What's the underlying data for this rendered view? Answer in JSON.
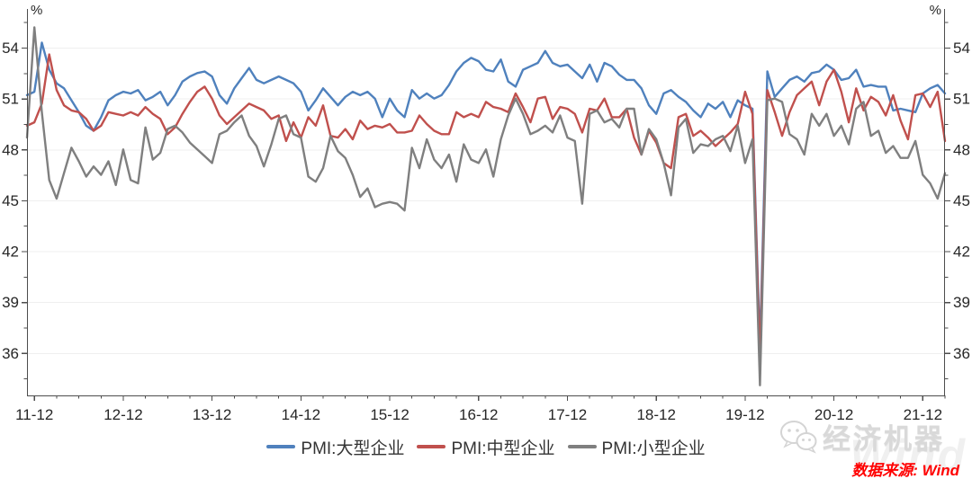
{
  "chart_data": {
    "type": "line",
    "title": "",
    "y_unit": "%",
    "frequency": "monthly",
    "x_monthly_range": [
      "2011-11",
      "2022-03"
    ],
    "ylim": [
      33.5,
      55.75
    ],
    "y_major_ticks": [
      36,
      39,
      42,
      45,
      48,
      51,
      54
    ],
    "y_minor_ticks": [
      34.5,
      37.5,
      40.5,
      43.5,
      46.5,
      49.5,
      52.5,
      55.5
    ],
    "x_tick_labels": [
      "11-12",
      "12-12",
      "13-12",
      "14-12",
      "15-12",
      "16-12",
      "17-12",
      "18-12",
      "19-12",
      "20-12",
      "21-12"
    ],
    "x_tick_every_months": 12,
    "x_first_tick_index": 1,
    "x_minor_tick_every_months": 3,
    "grid": "horizontal-only",
    "legend_position": "bottom-center",
    "axis_color": "#4d4d4d",
    "grid_color": "#efefef",
    "tick_label_color": "#262626",
    "series": [
      {
        "name": "PMI:大型企业",
        "color": "#4F81BD",
        "values": [
          51.2,
          51.4,
          54.3,
          52.7,
          51.9,
          51.6,
          50.9,
          50.2,
          49.4,
          49.1,
          49.9,
          50.9,
          51.2,
          51.4,
          51.3,
          51.5,
          50.9,
          51.1,
          51.4,
          50.6,
          51.2,
          52.0,
          52.3,
          52.5,
          52.6,
          52.3,
          51.2,
          50.7,
          51.6,
          52.2,
          52.8,
          52.1,
          51.9,
          52.1,
          52.3,
          52.1,
          51.9,
          51.4,
          50.3,
          50.9,
          51.6,
          51.1,
          50.6,
          51.1,
          51.4,
          51.2,
          51.4,
          51.0,
          49.9,
          51.0,
          50.3,
          49.9,
          51.5,
          51.0,
          51.3,
          51.0,
          51.2,
          51.8,
          52.6,
          53.1,
          53.4,
          53.2,
          52.7,
          52.6,
          53.3,
          52.0,
          51.7,
          52.7,
          52.9,
          53.1,
          53.8,
          53.1,
          52.9,
          53.0,
          52.6,
          52.2,
          53.0,
          52.0,
          53.1,
          52.9,
          52.4,
          52.1,
          52.1,
          51.6,
          50.6,
          50.1,
          51.3,
          51.5,
          51.1,
          50.8,
          50.3,
          49.9,
          50.7,
          50.4,
          50.8,
          49.9,
          50.9,
          50.6,
          50.4,
          36.3,
          52.6,
          51.1,
          51.6,
          52.1,
          52.3,
          52.0,
          52.5,
          52.6,
          53.0,
          52.7,
          52.1,
          52.2,
          52.7,
          51.7,
          51.8,
          51.7,
          51.7,
          50.3,
          50.4,
          50.3,
          50.2,
          51.3,
          51.6,
          51.8,
          51.3
        ]
      },
      {
        "name": "PMI:中型企业",
        "color": "#C0504D",
        "values": [
          49.4,
          49.6,
          50.7,
          53.6,
          51.5,
          50.6,
          50.3,
          50.2,
          49.8,
          49.1,
          49.4,
          50.2,
          50.1,
          50.0,
          50.2,
          50.0,
          50.5,
          50.1,
          49.8,
          48.9,
          49.3,
          50.1,
          50.8,
          51.4,
          51.7,
          51.0,
          50.0,
          49.5,
          49.9,
          50.3,
          50.7,
          50.5,
          50.3,
          49.8,
          50.0,
          48.5,
          49.6,
          48.7,
          49.9,
          49.4,
          50.6,
          48.8,
          48.7,
          49.2,
          48.6,
          49.7,
          49.2,
          49.4,
          49.3,
          49.5,
          49.0,
          49.0,
          49.1,
          50.0,
          49.5,
          49.1,
          48.9,
          48.9,
          50.2,
          49.9,
          50.1,
          49.9,
          50.8,
          50.5,
          50.4,
          50.2,
          51.3,
          50.5,
          49.6,
          51.0,
          51.1,
          49.8,
          50.5,
          50.4,
          50.1,
          49.0,
          50.4,
          50.3,
          51.0,
          49.9,
          49.9,
          50.4,
          48.7,
          47.7,
          49.1,
          48.4,
          47.2,
          46.9,
          49.9,
          50.1,
          48.8,
          49.1,
          48.7,
          48.2,
          48.6,
          49.0,
          49.5,
          51.4,
          50.1,
          35.5,
          51.5,
          50.2,
          48.8,
          50.2,
          51.2,
          51.6,
          52.0,
          50.6,
          52.0,
          52.7,
          51.4,
          49.6,
          51.6,
          50.3,
          51.1,
          50.8,
          50.0,
          51.2,
          49.7,
          48.6,
          51.2,
          51.3,
          50.5,
          51.4,
          48.5
        ]
      },
      {
        "name": "PMI:小型企业",
        "color": "#7F7F7F",
        "values": [
          48.7,
          55.2,
          50.2,
          46.2,
          45.1,
          46.6,
          48.1,
          47.3,
          46.4,
          47.0,
          46.5,
          47.3,
          45.9,
          48.0,
          46.2,
          46.0,
          49.3,
          47.4,
          47.8,
          49.2,
          49.4,
          49.0,
          48.4,
          48.0,
          47.6,
          47.2,
          48.9,
          49.1,
          49.6,
          50.0,
          48.8,
          48.2,
          47.0,
          48.3,
          49.8,
          50.0,
          48.9,
          48.7,
          46.4,
          46.1,
          46.9,
          48.8,
          47.9,
          47.5,
          46.5,
          45.2,
          45.7,
          44.6,
          44.8,
          44.9,
          44.8,
          44.4,
          48.1,
          46.9,
          48.6,
          47.4,
          46.9,
          47.7,
          46.1,
          48.3,
          47.4,
          47.2,
          48.0,
          46.4,
          48.6,
          50.0,
          51.0,
          50.1,
          48.9,
          49.1,
          49.4,
          49.0,
          50.0,
          48.7,
          48.5,
          44.8,
          50.1,
          50.3,
          49.6,
          49.8,
          49.3,
          50.4,
          50.4,
          47.7,
          49.2,
          48.6,
          47.2,
          45.3,
          49.3,
          49.8,
          47.8,
          48.3,
          48.2,
          48.6,
          48.8,
          47.9,
          49.4,
          47.2,
          48.6,
          34.1,
          50.9,
          51.0,
          50.8,
          48.9,
          48.6,
          47.7,
          50.1,
          49.4,
          50.1,
          48.8,
          49.4,
          48.3,
          50.4,
          50.8,
          48.8,
          49.1,
          47.8,
          48.2,
          47.5,
          47.5,
          48.5,
          46.5,
          46.0,
          45.1,
          46.6
        ]
      }
    ]
  },
  "legend": {
    "items": [
      {
        "label": "PMI:大型企业",
        "color": "#4F81BD"
      },
      {
        "label": "PMI:中型企业",
        "color": "#C0504D"
      },
      {
        "label": "PMI:小型企业",
        "color": "#7F7F7F"
      }
    ]
  },
  "watermark": {
    "brand": "经济机器",
    "ghost": "Wind"
  },
  "source": {
    "text": "数据来源: Wind",
    "color": "#FF0000"
  }
}
